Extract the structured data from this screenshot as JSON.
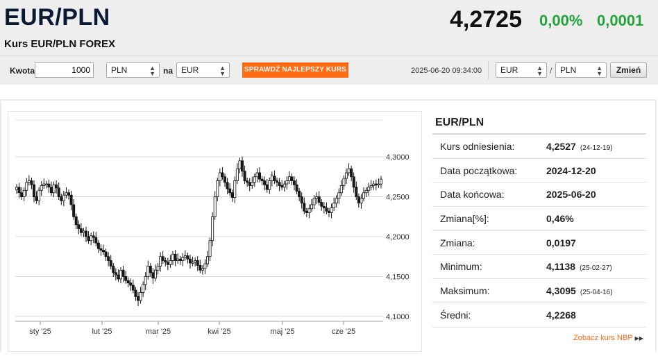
{
  "header": {
    "title": "EUR/PLN",
    "subtitle": "Kurs EUR/PLN FOREX",
    "rate": "4,2725",
    "change_pct": "0,00%",
    "change_abs": "0,0001",
    "change_color": "#22a33b"
  },
  "converter": {
    "amount_label": "Kwota",
    "amount_value": "1000",
    "from_currency": "PLN",
    "to_label": "na",
    "to_currency": "EUR",
    "cta_label": "SPRAWDŹ NAJLEPSZY KURS",
    "cta_color": "#ff6a13",
    "timestamp": "2025-06-20 09:34:00",
    "pair_base": "EUR",
    "pair_sep": "/",
    "pair_quote": "PLN",
    "change_button": "Zmień"
  },
  "info": {
    "title": "EUR/PLN",
    "rows": [
      {
        "label": "Kurs odniesienia:",
        "value": "4,2527",
        "date": "(24-12-19)"
      },
      {
        "label": "Data początkowa:",
        "value": "2024-12-20",
        "date": ""
      },
      {
        "label": "Data końcowa:",
        "value": "2025-06-20",
        "date": ""
      },
      {
        "label": "Zmiana[%]:",
        "value": "0,46%",
        "date": ""
      },
      {
        "label": "Zmiana:",
        "value": "0,0197",
        "date": ""
      },
      {
        "label": "Minimum:",
        "value": "4,1138",
        "date": "(25-02-27)"
      },
      {
        "label": "Maksimum:",
        "value": "4,3095",
        "date": "(25-04-16)"
      },
      {
        "label": "Średni:",
        "value": "4,2268",
        "date": ""
      }
    ],
    "nbp_link": "Zobacz kurs NBP"
  },
  "chart_data": {
    "type": "candlestick",
    "x_ticks": [
      "sty '25",
      "lut '25",
      "mar '25",
      "kwi '25",
      "maj '25",
      "cze '25"
    ],
    "y_ticks": [
      "4,3000",
      "4,2500",
      "4,2000",
      "4,1500",
      "4,1000"
    ],
    "ylim": [
      4.1,
      4.3
    ],
    "grid": true,
    "close": [
      4.262,
      4.255,
      4.25,
      4.258,
      4.268,
      4.27,
      4.265,
      4.25,
      4.245,
      4.258,
      4.264,
      4.266,
      4.266,
      4.262,
      4.255,
      4.265,
      4.261,
      4.25,
      4.245,
      4.252,
      4.255,
      4.252,
      4.24,
      4.225,
      4.215,
      4.21,
      4.205,
      4.207,
      4.2,
      4.195,
      4.201,
      4.199,
      4.192,
      4.185,
      4.183,
      4.181,
      4.175,
      4.17,
      4.163,
      4.155,
      4.152,
      4.147,
      4.158,
      4.15,
      4.145,
      4.142,
      4.139,
      4.133,
      4.125,
      4.12,
      4.13,
      4.14,
      4.15,
      4.163,
      4.155,
      4.148,
      4.158,
      4.163,
      4.175,
      4.17,
      4.168,
      4.165,
      4.17,
      4.178,
      4.17,
      4.172,
      4.17,
      4.174,
      4.176,
      4.172,
      4.167,
      4.168,
      4.17,
      4.164,
      4.158,
      4.16,
      4.166,
      4.175,
      4.195,
      4.225,
      4.25,
      4.27,
      4.28,
      4.275,
      4.268,
      4.26,
      4.255,
      4.249,
      4.27,
      4.285,
      4.295,
      4.282,
      4.27,
      4.268,
      4.264,
      4.268,
      4.275,
      4.28,
      4.272,
      4.27,
      4.265,
      4.259,
      4.27,
      4.276,
      4.27,
      4.268,
      4.264,
      4.262,
      4.266,
      4.27,
      4.275,
      4.27,
      4.265,
      4.257,
      4.25,
      4.242,
      4.232,
      4.23,
      4.235,
      4.24,
      4.248,
      4.25,
      4.243,
      4.238,
      4.236,
      4.232,
      4.23,
      4.236,
      4.242,
      4.248,
      4.255,
      4.264,
      4.273,
      4.28,
      4.285,
      4.275,
      4.262,
      4.25,
      4.242,
      4.248,
      4.255,
      4.258,
      4.262,
      4.264,
      4.266,
      4.265,
      4.266,
      4.272
    ]
  }
}
